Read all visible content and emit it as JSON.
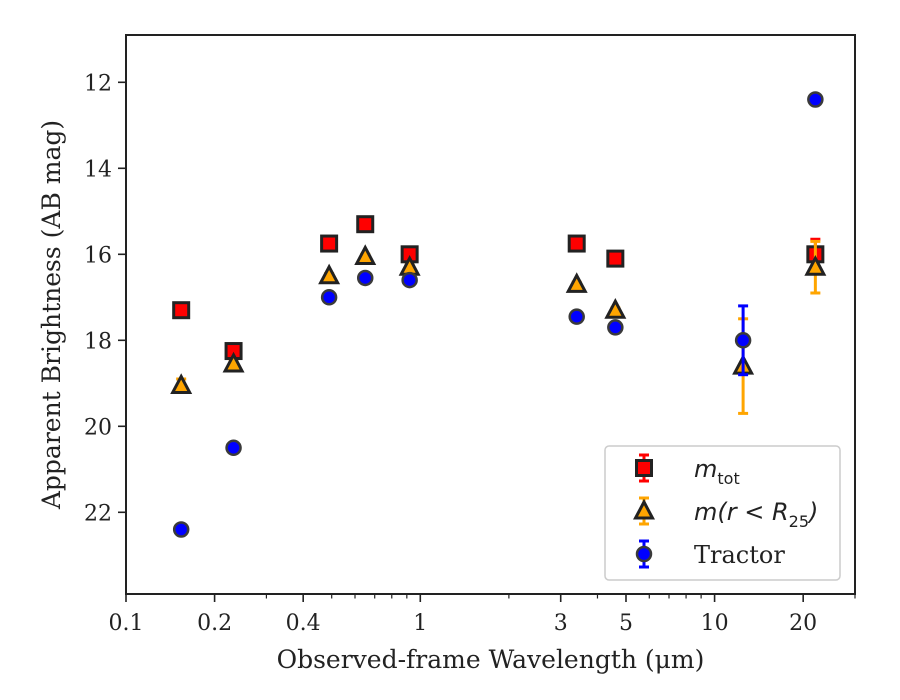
{
  "chart_data": {
    "type": "scatter",
    "title": "",
    "xlabel": "Observed-frame Wavelength (μm)",
    "ylabel": "Apparent Brightness (AB mag)",
    "x_scale": "log",
    "xlim": [
      0.1,
      30
    ],
    "ylim": [
      23.9,
      10.9
    ],
    "y_inverted": true,
    "x_ticks": [
      {
        "value": 0.1,
        "label": "0.1"
      },
      {
        "value": 0.2,
        "label": "0.2"
      },
      {
        "value": 0.4,
        "label": "0.4"
      },
      {
        "value": 1,
        "label": "1"
      },
      {
        "value": 3,
        "label": "3"
      },
      {
        "value": 5,
        "label": "5"
      },
      {
        "value": 10,
        "label": "10"
      },
      {
        "value": 20,
        "label": "20"
      }
    ],
    "x_minor_ticks": [
      0.3,
      0.5,
      0.6,
      0.7,
      0.8,
      0.9,
      2,
      4,
      6,
      7,
      8,
      9,
      30
    ],
    "y_ticks": [
      {
        "value": 12,
        "label": "12"
      },
      {
        "value": 14,
        "label": "14"
      },
      {
        "value": 16,
        "label": "16"
      },
      {
        "value": 18,
        "label": "18"
      },
      {
        "value": 20,
        "label": "20"
      },
      {
        "value": 22,
        "label": "22"
      }
    ],
    "grid": false,
    "legend_position": "bottom-right",
    "series": [
      {
        "name": "m_tot",
        "legend_main": "m",
        "legend_sub": "tot",
        "legend_rest": "",
        "marker": "square",
        "fill": "#ff0000",
        "edge": "#222222",
        "ecolor": "#ff0000",
        "points": [
          {
            "x": 0.154,
            "y": 17.3,
            "err": 0.05
          },
          {
            "x": 0.232,
            "y": 18.25,
            "err": 0.05
          },
          {
            "x": 0.49,
            "y": 15.75,
            "err": 0.05
          },
          {
            "x": 0.65,
            "y": 15.3,
            "err": 0.05
          },
          {
            "x": 0.92,
            "y": 16.0,
            "err": 0.05
          },
          {
            "x": 3.4,
            "y": 15.75,
            "err": 0.05
          },
          {
            "x": 4.6,
            "y": 16.1,
            "err": 0.05
          },
          {
            "x": 22.0,
            "y": 16.0,
            "err": 0.35
          }
        ]
      },
      {
        "name": "m(r < R25)",
        "legend_main": "m(r < R",
        "legend_sub": "25",
        "legend_rest": ")",
        "marker": "triangle",
        "fill": "#ffa500",
        "edge": "#222222",
        "ecolor": "#ffa500",
        "points": [
          {
            "x": 0.154,
            "y": 19.05,
            "err": 0.15
          },
          {
            "x": 0.232,
            "y": 18.55,
            "err": 0.05
          },
          {
            "x": 0.49,
            "y": 16.5,
            "err": 0.05
          },
          {
            "x": 0.65,
            "y": 16.05,
            "err": 0.05
          },
          {
            "x": 0.92,
            "y": 16.3,
            "err": 0.05
          },
          {
            "x": 3.4,
            "y": 16.7,
            "err": 0.05
          },
          {
            "x": 4.6,
            "y": 17.3,
            "err": 0.05
          },
          {
            "x": 12.5,
            "y": 18.6,
            "err": 1.1
          },
          {
            "x": 22.0,
            "y": 16.3,
            "err": 0.6
          }
        ]
      },
      {
        "name": "Tractor",
        "legend_main": "Tractor",
        "legend_sub": "",
        "legend_rest": "",
        "marker": "circle",
        "fill": "#0000ff",
        "edge": "#3a3a3a",
        "ecolor": "#0000ff",
        "points": [
          {
            "x": 0.154,
            "y": 22.4,
            "err": 0.05
          },
          {
            "x": 0.232,
            "y": 20.5,
            "err": 0.05
          },
          {
            "x": 0.49,
            "y": 17.0,
            "err": 0.05
          },
          {
            "x": 0.65,
            "y": 16.55,
            "err": 0.05
          },
          {
            "x": 0.92,
            "y": 16.6,
            "err": 0.05
          },
          {
            "x": 3.4,
            "y": 17.45,
            "err": 0.05
          },
          {
            "x": 4.6,
            "y": 17.7,
            "err": 0.05
          },
          {
            "x": 12.5,
            "y": 18.0,
            "err": 0.8
          },
          {
            "x": 22.0,
            "y": 12.4,
            "err": 0.05
          }
        ]
      }
    ]
  }
}
